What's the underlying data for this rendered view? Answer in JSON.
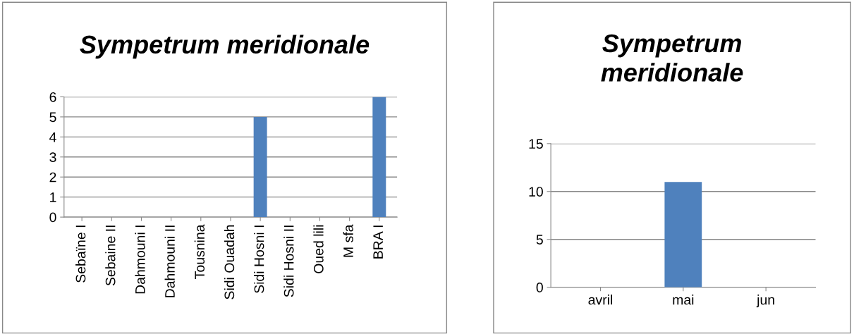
{
  "chart_data": [
    {
      "type": "bar",
      "title": "Sympetrum meridionale",
      "categories": [
        "Sebaïne I",
        "Sebaine II",
        "Dahmouni I",
        "Dahmouni II",
        "Tousnina",
        "Sidi Ouadah",
        "Sidi Hosni I",
        "Sidi Hosni II",
        "Oued lili",
        "M sfa",
        "BRA I"
      ],
      "values": [
        0,
        0,
        0,
        0,
        0,
        0,
        5,
        0,
        0,
        0,
        6
      ],
      "color": "#4f81bd",
      "ylim": [
        0,
        6
      ],
      "yticks": [
        0,
        1,
        2,
        3,
        4,
        5,
        6
      ],
      "grid": "y"
    },
    {
      "type": "bar",
      "title": "Sympetrum\nmeridionale",
      "categories": [
        "avril",
        "mai",
        "jun"
      ],
      "values": [
        0,
        11,
        0
      ],
      "color": "#4f81bd",
      "ylim": [
        0,
        15
      ],
      "yticks": [
        0,
        5,
        10,
        15
      ],
      "grid": "y"
    }
  ]
}
